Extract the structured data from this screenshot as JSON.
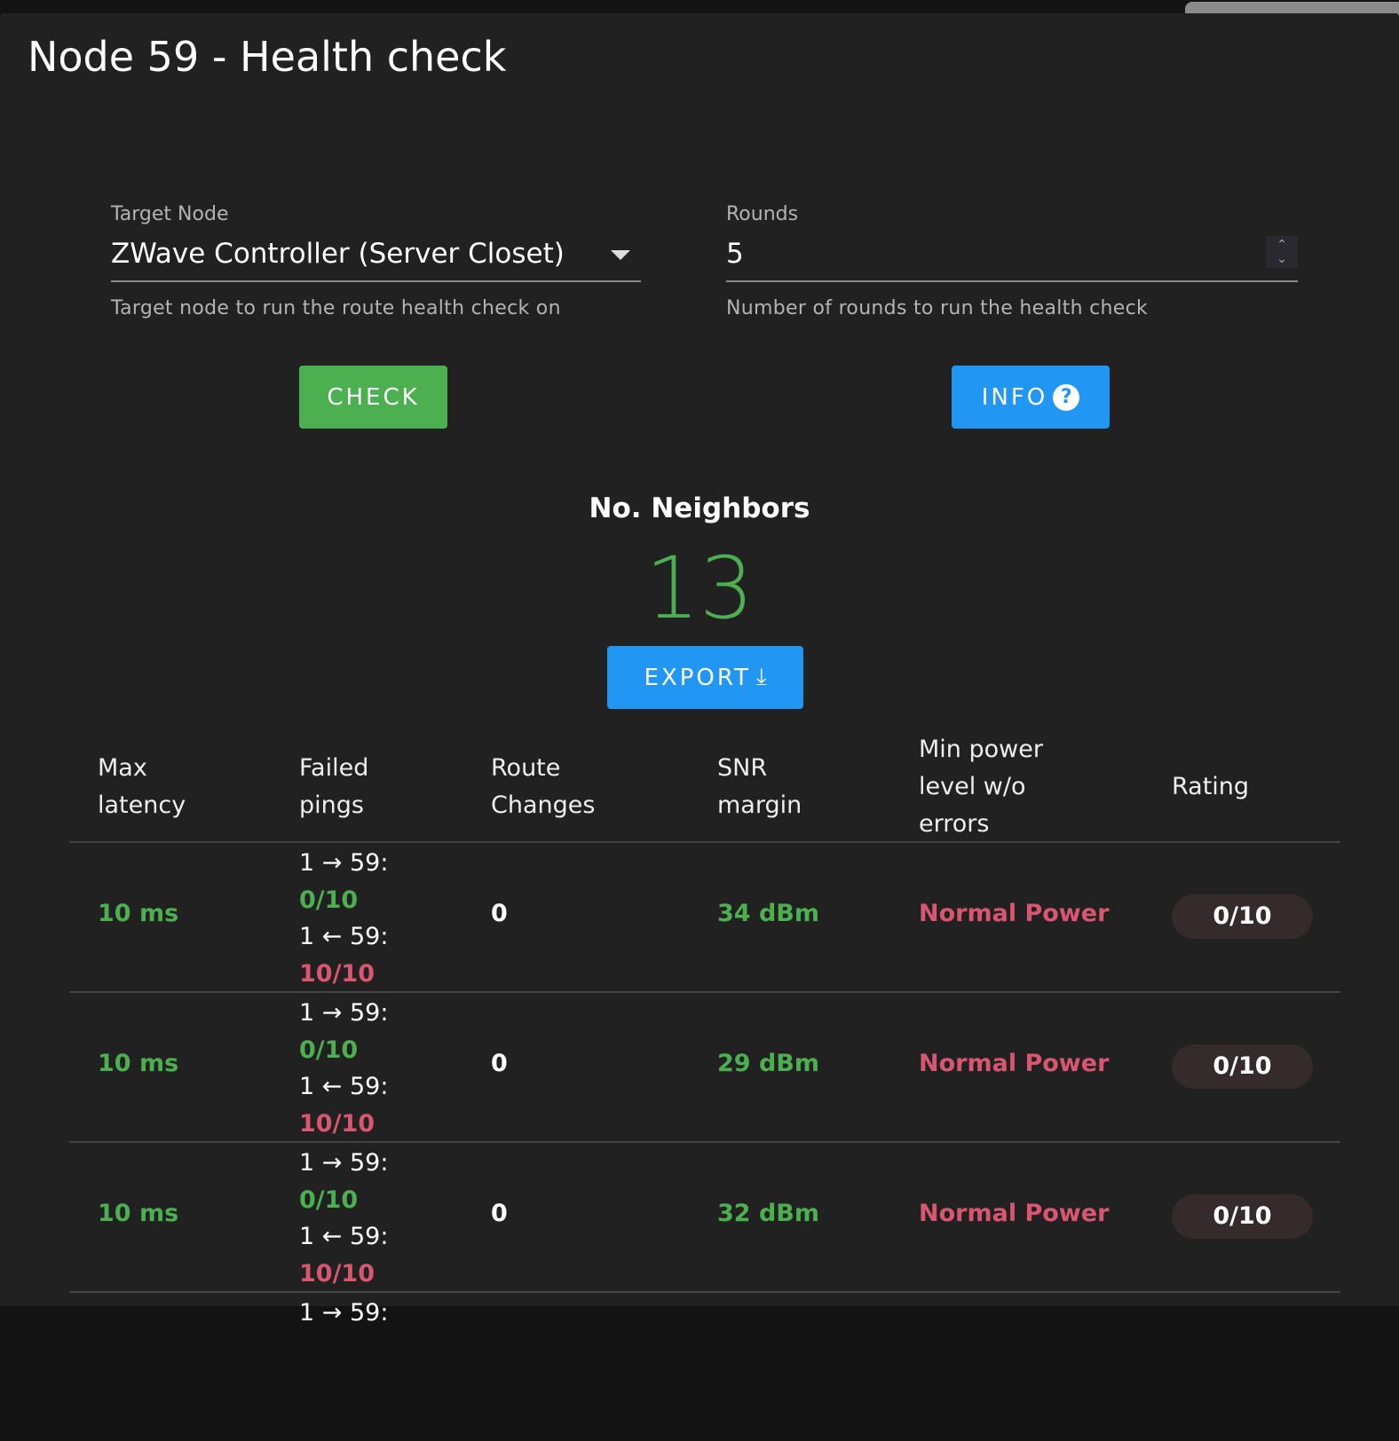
{
  "title": "Node 59 - Health check",
  "target": {
    "label": "Target Node",
    "value": "ZWave Controller (Server Closet)",
    "hint": "Target node to run the route health check on"
  },
  "rounds": {
    "label": "Rounds",
    "value": "5",
    "hint": "Number of rounds to run the health check"
  },
  "buttons": {
    "check": "CHECK",
    "info": "INFO",
    "export": "EXPORT"
  },
  "neighbors": {
    "label": "No. Neighbors",
    "value": "13"
  },
  "colors": {
    "green": "#4caf50",
    "red": "#d8566f",
    "blue": "#2196f3",
    "check": "#4caf50"
  },
  "table": {
    "headers": [
      "Max latency",
      "Failed pings",
      "Route Changes",
      "SNR margin",
      "Min power level w/o errors",
      "Rating"
    ],
    "rows": [
      {
        "latency": "10 ms",
        "out_label": "1 → 59:",
        "out": "0/10",
        "in_label": "1 ← 59:",
        "in": "10/10",
        "route_changes": "0",
        "snr": "34 dBm",
        "power": "Normal Power",
        "rating": "0/10"
      },
      {
        "latency": "10 ms",
        "out_label": "1 → 59:",
        "out": "0/10",
        "in_label": "1 ← 59:",
        "in": "10/10",
        "route_changes": "0",
        "snr": "29 dBm",
        "power": "Normal Power",
        "rating": "0/10"
      },
      {
        "latency": "10 ms",
        "out_label": "1 → 59:",
        "out": "0/10",
        "in_label": "1 ← 59:",
        "in": "10/10",
        "route_changes": "0",
        "snr": "32 dBm",
        "power": "Normal Power",
        "rating": "0/10"
      },
      {
        "out_label": "1 → 59:"
      }
    ]
  }
}
